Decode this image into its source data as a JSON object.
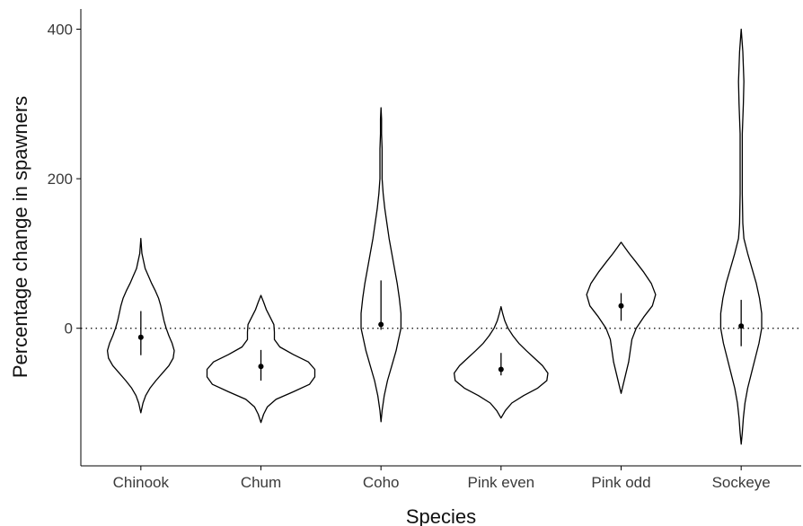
{
  "chart_data": {
    "type": "violin",
    "xlabel": "Species",
    "ylabel": "Percentage change in spawners",
    "categories": [
      "Chinook",
      "Chum",
      "Coho",
      "Pink even",
      "Pink odd",
      "Sockeye"
    ],
    "y_ticks": [
      {
        "value": 0,
        "label": "0"
      },
      {
        "value": 200,
        "label": "200"
      },
      {
        "value": 400,
        "label": "400"
      }
    ],
    "ylim": [
      -184,
      427
    ],
    "reference_line": {
      "value": 0,
      "style": "dotted"
    },
    "series": [
      {
        "category": "Chinook",
        "min": -113,
        "max": 120,
        "median": -12,
        "interval": [
          -36,
          23
        ],
        "density": [
          [
            -113,
            0
          ],
          [
            -100,
            0.04
          ],
          [
            -90,
            0.09
          ],
          [
            -80,
            0.17
          ],
          [
            -70,
            0.28
          ],
          [
            -60,
            0.4
          ],
          [
            -50,
            0.52
          ],
          [
            -40,
            0.6
          ],
          [
            -30,
            0.62
          ],
          [
            -20,
            0.58
          ],
          [
            -10,
            0.52
          ],
          [
            0,
            0.47
          ],
          [
            10,
            0.43
          ],
          [
            20,
            0.4
          ],
          [
            30,
            0.37
          ],
          [
            40,
            0.33
          ],
          [
            50,
            0.27
          ],
          [
            60,
            0.2
          ],
          [
            70,
            0.14
          ],
          [
            80,
            0.08
          ],
          [
            90,
            0.05
          ],
          [
            100,
            0.02
          ],
          [
            110,
            0.01
          ],
          [
            120,
            0
          ]
        ]
      },
      {
        "category": "Chum",
        "min": -126,
        "max": 44,
        "median": -51,
        "interval": [
          -70,
          -29
        ],
        "density": [
          [
            -126,
            0
          ],
          [
            -115,
            0.05
          ],
          [
            -105,
            0.12
          ],
          [
            -95,
            0.28
          ],
          [
            -85,
            0.6
          ],
          [
            -75,
            0.9
          ],
          [
            -65,
            1.0
          ],
          [
            -55,
            1.0
          ],
          [
            -45,
            0.88
          ],
          [
            -35,
            0.6
          ],
          [
            -25,
            0.35
          ],
          [
            -15,
            0.25
          ],
          [
            -5,
            0.25
          ],
          [
            5,
            0.24
          ],
          [
            15,
            0.17
          ],
          [
            25,
            0.1
          ],
          [
            35,
            0.05
          ],
          [
            44,
            0
          ]
        ]
      },
      {
        "category": "Coho",
        "min": -125,
        "max": 295,
        "median": 5,
        "interval": [
          -2,
          64
        ],
        "density": [
          [
            -125,
            0
          ],
          [
            -110,
            0.02
          ],
          [
            -90,
            0.06
          ],
          [
            -70,
            0.12
          ],
          [
            -50,
            0.2
          ],
          [
            -30,
            0.28
          ],
          [
            -10,
            0.34
          ],
          [
            0,
            0.37
          ],
          [
            20,
            0.37
          ],
          [
            40,
            0.34
          ],
          [
            60,
            0.3
          ],
          [
            80,
            0.25
          ],
          [
            100,
            0.2
          ],
          [
            120,
            0.15
          ],
          [
            140,
            0.11
          ],
          [
            160,
            0.07
          ],
          [
            180,
            0.04
          ],
          [
            200,
            0.02
          ],
          [
            220,
            0.02
          ],
          [
            240,
            0.02
          ],
          [
            260,
            0.01
          ],
          [
            280,
            0.01
          ],
          [
            295,
            0
          ]
        ]
      },
      {
        "category": "Pink even",
        "min": -120,
        "max": 29,
        "median": -55,
        "interval": [
          -63,
          -33
        ],
        "density": [
          [
            -120,
            0
          ],
          [
            -110,
            0.08
          ],
          [
            -100,
            0.2
          ],
          [
            -90,
            0.42
          ],
          [
            -80,
            0.68
          ],
          [
            -70,
            0.85
          ],
          [
            -60,
            0.87
          ],
          [
            -50,
            0.77
          ],
          [
            -40,
            0.62
          ],
          [
            -30,
            0.47
          ],
          [
            -20,
            0.33
          ],
          [
            -10,
            0.22
          ],
          [
            0,
            0.13
          ],
          [
            10,
            0.07
          ],
          [
            20,
            0.03
          ],
          [
            29,
            0
          ]
        ]
      },
      {
        "category": "Pink odd",
        "min": -87,
        "max": 115,
        "median": 30,
        "interval": [
          10,
          47
        ],
        "density": [
          [
            -87,
            0
          ],
          [
            -75,
            0.04
          ],
          [
            -60,
            0.09
          ],
          [
            -45,
            0.14
          ],
          [
            -30,
            0.17
          ],
          [
            -15,
            0.2
          ],
          [
            0,
            0.28
          ],
          [
            15,
            0.42
          ],
          [
            30,
            0.58
          ],
          [
            45,
            0.64
          ],
          [
            60,
            0.56
          ],
          [
            75,
            0.42
          ],
          [
            90,
            0.26
          ],
          [
            100,
            0.15
          ],
          [
            108,
            0.07
          ],
          [
            115,
            0
          ]
        ]
      },
      {
        "category": "Sockeye",
        "min": -155,
        "max": 400,
        "median": 3,
        "interval": [
          -24,
          38
        ],
        "density": [
          [
            -155,
            0
          ],
          [
            -140,
            0.02
          ],
          [
            -120,
            0.04
          ],
          [
            -100,
            0.07
          ],
          [
            -80,
            0.12
          ],
          [
            -60,
            0.19
          ],
          [
            -40,
            0.26
          ],
          [
            -20,
            0.33
          ],
          [
            0,
            0.38
          ],
          [
            20,
            0.38
          ],
          [
            40,
            0.34
          ],
          [
            60,
            0.28
          ],
          [
            80,
            0.2
          ],
          [
            100,
            0.12
          ],
          [
            120,
            0.05
          ],
          [
            140,
            0.03
          ],
          [
            180,
            0.02
          ],
          [
            220,
            0.02
          ],
          [
            260,
            0.02
          ],
          [
            300,
            0.04
          ],
          [
            330,
            0.05
          ],
          [
            350,
            0.04
          ],
          [
            370,
            0.03
          ],
          [
            390,
            0.01
          ],
          [
            400,
            0
          ]
        ]
      }
    ]
  }
}
